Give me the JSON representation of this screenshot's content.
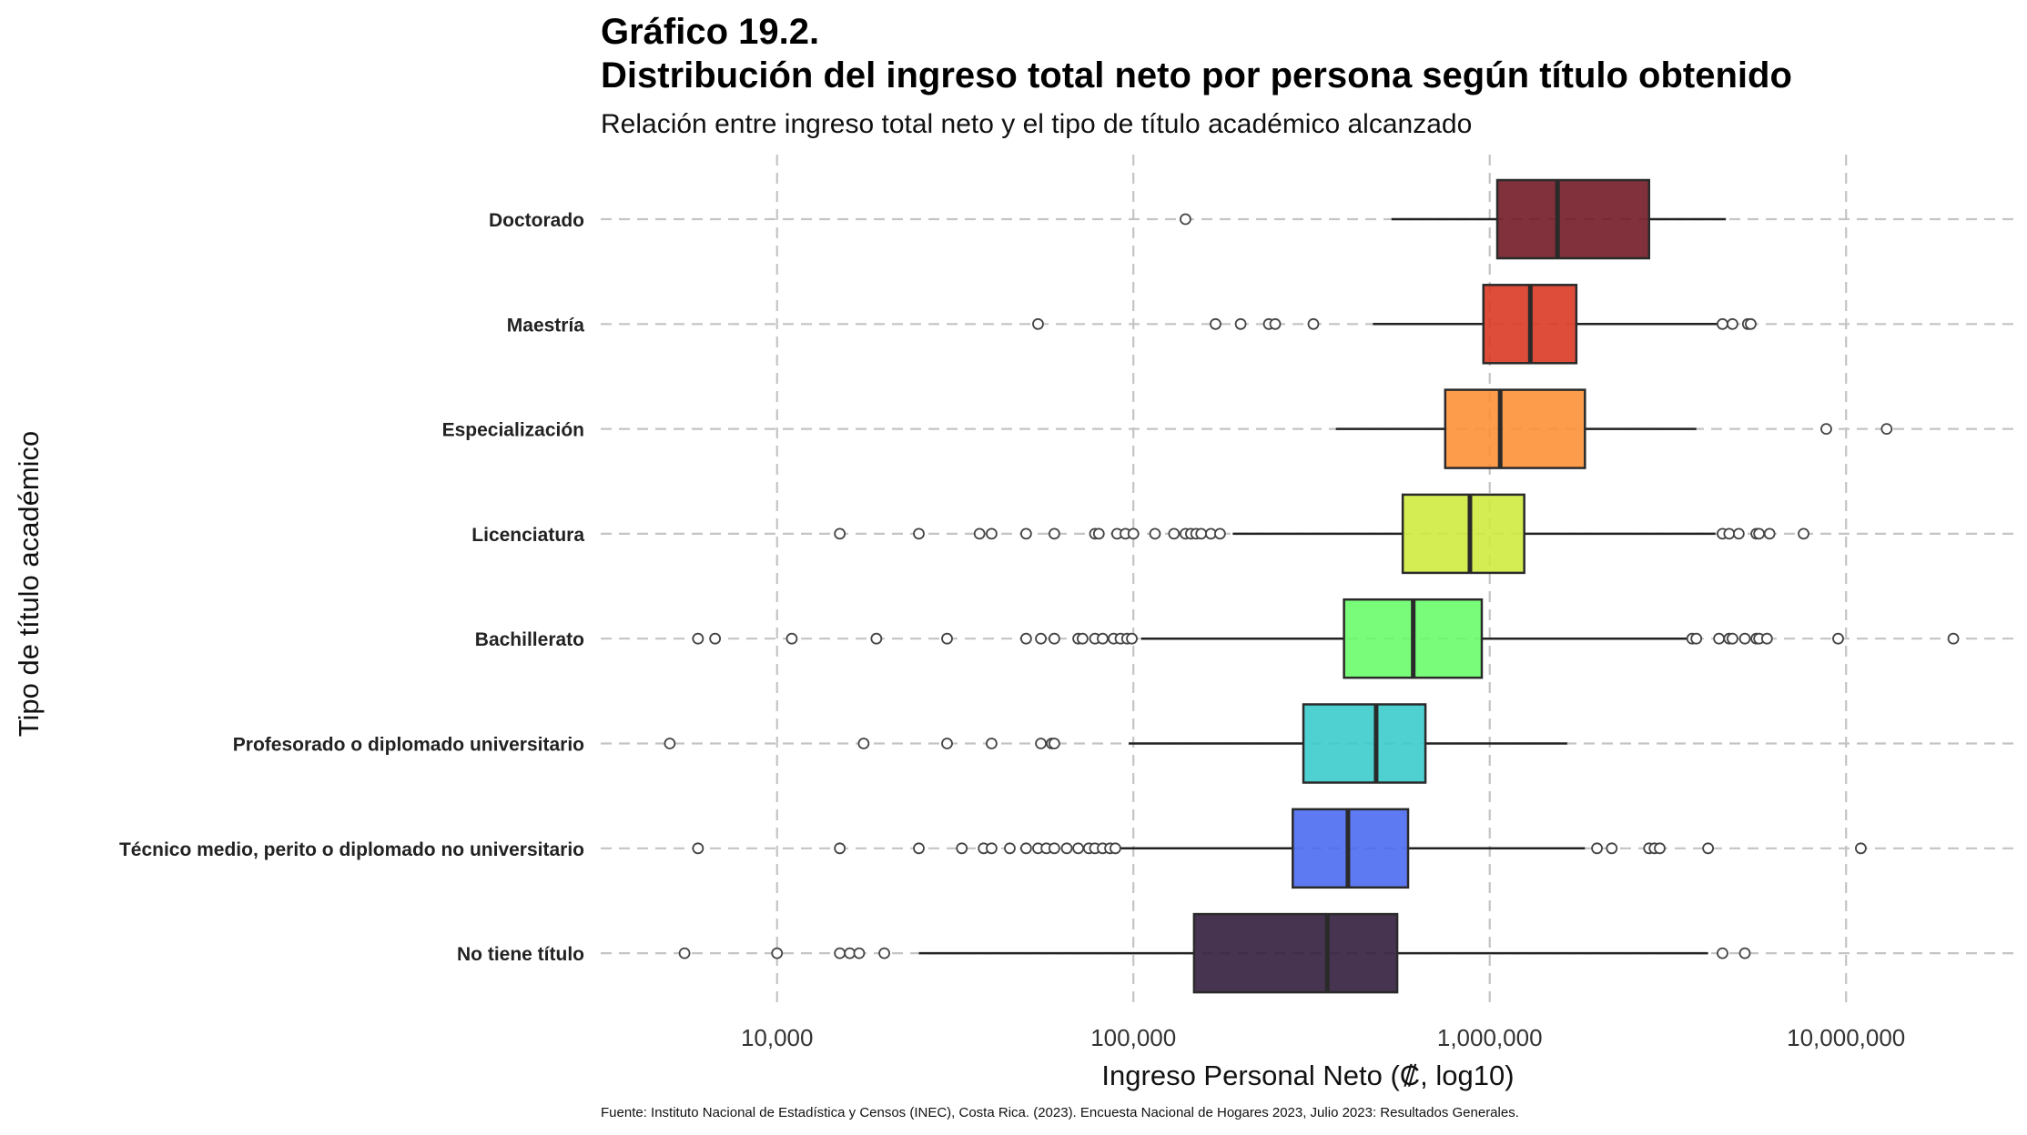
{
  "chart_data": {
    "type": "boxplot",
    "title_line1": "Gráfico 19.2.",
    "title_line2": "Distribución del ingreso total neto por persona según título obtenido",
    "subtitle": "Relación entre ingreso total neto y el tipo de título académico alcanzado",
    "xlabel": "Ingreso Personal Neto (₡, log10)",
    "ylabel": "Tipo de título académico",
    "caption": "Fuente: Instituto Nacional de Estadística y Censos (INEC), Costa Rica. (2023). Encuesta Nacional de Hogares 2023, Julio 2023: Resultados Generales.",
    "x_scale": "log10",
    "xlim": [
      3200,
      30000000
    ],
    "x_ticks": [
      10000,
      100000,
      1000000,
      10000000
    ],
    "x_tick_labels": [
      "10,000",
      "100,000",
      "1,000,000",
      "10,000,000"
    ],
    "grid": "dashed, vertical and horizontal",
    "categories": [
      {
        "label": "Doctorado",
        "color": "#6e1420",
        "whisker_low": 530000,
        "q1": 1050000,
        "median": 1550000,
        "q3": 2800000,
        "whisker_high": 4600000,
        "outliers": [
          140000
        ]
      },
      {
        "label": "Maestría",
        "color": "#d9341f",
        "whisker_low": 470000,
        "q1": 960000,
        "median": 1300000,
        "q3": 1750000,
        "whisker_high": 4400000,
        "outliers": [
          54000,
          170000,
          200000,
          240000,
          250000,
          320000,
          4500000,
          4800000,
          5300000,
          5400000
        ]
      },
      {
        "label": "Especialización",
        "color": "#fd8f33",
        "whisker_low": 370000,
        "q1": 750000,
        "median": 1070000,
        "q3": 1850000,
        "whisker_high": 3800000,
        "outliers": [
          8800000,
          13000000
        ]
      },
      {
        "label": "Licenciatura",
        "color": "#cdeb3a",
        "whisker_low": 190000,
        "q1": 570000,
        "median": 880000,
        "q3": 1250000,
        "whisker_high": 4300000,
        "outliers": [
          15000,
          25000,
          37000,
          40000,
          50000,
          60000,
          78000,
          80000,
          90000,
          95000,
          100000,
          115000,
          130000,
          140000,
          145000,
          150000,
          155000,
          165000,
          175000,
          4500000,
          4700000,
          5000000,
          5600000,
          5700000,
          6100000,
          7600000
        ]
      },
      {
        "label": "Bachillerato",
        "color": "#66fc68",
        "whisker_low": 105000,
        "q1": 390000,
        "median": 610000,
        "q3": 950000,
        "whisker_high": 3700000,
        "outliers": [
          6000,
          6700,
          11000,
          19000,
          30000,
          50000,
          55000,
          60000,
          70000,
          72000,
          78000,
          82000,
          88000,
          92000,
          96000,
          99000,
          3700000,
          3800000,
          4400000,
          4700000,
          4800000,
          5200000,
          5600000,
          5700000,
          6000000,
          9500000,
          20000000
        ]
      },
      {
        "label": "Profesorado o diplomado universitario",
        "color": "#35cbc9",
        "whisker_low": 97000,
        "q1": 300000,
        "median": 480000,
        "q3": 660000,
        "whisker_high": 1650000,
        "outliers": [
          5000,
          17500,
          30000,
          40000,
          55000,
          59000,
          60000
        ]
      },
      {
        "label": "Técnico medio, perito o diplomado no universitario",
        "color": "#4868f0",
        "whisker_low": 90000,
        "q1": 280000,
        "median": 400000,
        "q3": 590000,
        "whisker_high": 1850000,
        "outliers": [
          6000,
          15000,
          25000,
          33000,
          38000,
          40000,
          45000,
          50000,
          54000,
          57000,
          60000,
          65000,
          70000,
          75000,
          78000,
          82000,
          86000,
          89000,
          2000000,
          2200000,
          2800000,
          2900000,
          3000000,
          4100000,
          11000000
        ]
      },
      {
        "label": "No tiene título",
        "color": "#2d1838",
        "whisker_low": 25000,
        "q1": 148000,
        "median": 350000,
        "q3": 550000,
        "whisker_high": 4100000,
        "outliers": [
          5500,
          10000,
          15000,
          16000,
          17000,
          20000,
          4500000,
          5200000
        ]
      }
    ]
  }
}
